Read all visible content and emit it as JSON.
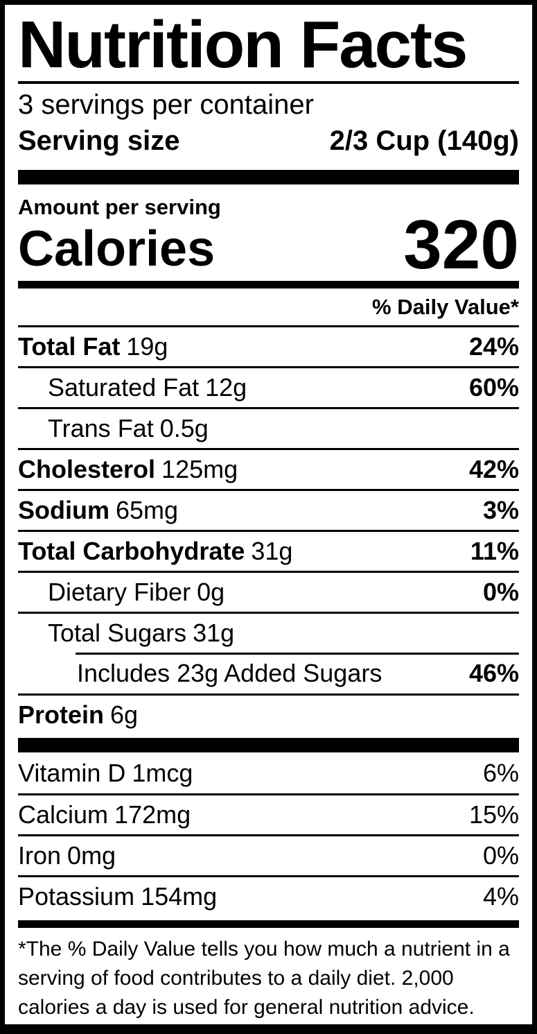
{
  "colors": {
    "text": "#000000",
    "background": "#ffffff",
    "rule": "#000000"
  },
  "label": {
    "title": "Nutrition Facts",
    "servings_per_container": "3 servings per container",
    "serving_size_label": "Serving size",
    "serving_size_value": "2/3 Cup (140g)",
    "amount_per_serving": "Amount per serving",
    "calories_label": "Calories",
    "calories_value": "320",
    "daily_value_header": "% Daily Value*",
    "nutrients": [
      {
        "name": "Total Fat",
        "amount": "19g",
        "dv": "24%",
        "indent": 0
      },
      {
        "name": "Saturated Fat",
        "amount": "12g",
        "dv": "60%",
        "indent": 1
      },
      {
        "name": "Trans Fat",
        "amount": "0.5g",
        "dv": "",
        "indent": 1
      },
      {
        "name": "Cholesterol",
        "amount": "125mg",
        "dv": "42%",
        "indent": 0
      },
      {
        "name": "Sodium",
        "amount": "65mg",
        "dv": "3%",
        "indent": 0
      },
      {
        "name": "Total Carbohydrate",
        "amount": "31g",
        "dv": "11%",
        "indent": 0
      },
      {
        "name": "Dietary Fiber",
        "amount": "0g",
        "dv": "0%",
        "indent": 1
      },
      {
        "name": "Total Sugars",
        "amount": "31g",
        "dv": "",
        "indent": 1
      },
      {
        "name": "Includes 23g Added Sugars",
        "amount": "",
        "dv": "46%",
        "indent": 2
      },
      {
        "name": "Protein",
        "amount": "6g",
        "dv": "",
        "indent": 0
      }
    ],
    "vitamins": [
      {
        "name": "Vitamin D",
        "amount": "1mcg",
        "dv": "6%"
      },
      {
        "name": "Calcium",
        "amount": "172mg",
        "dv": "15%"
      },
      {
        "name": "Iron",
        "amount": "0mg",
        "dv": "0%"
      },
      {
        "name": "Potassium",
        "amount": "154mg",
        "dv": "4%"
      }
    ],
    "footnote": "*The % Daily Value tells you how much a nutrient in a serving of food contributes to a daily diet. 2,000 calories a day is used for general nutrition advice."
  }
}
